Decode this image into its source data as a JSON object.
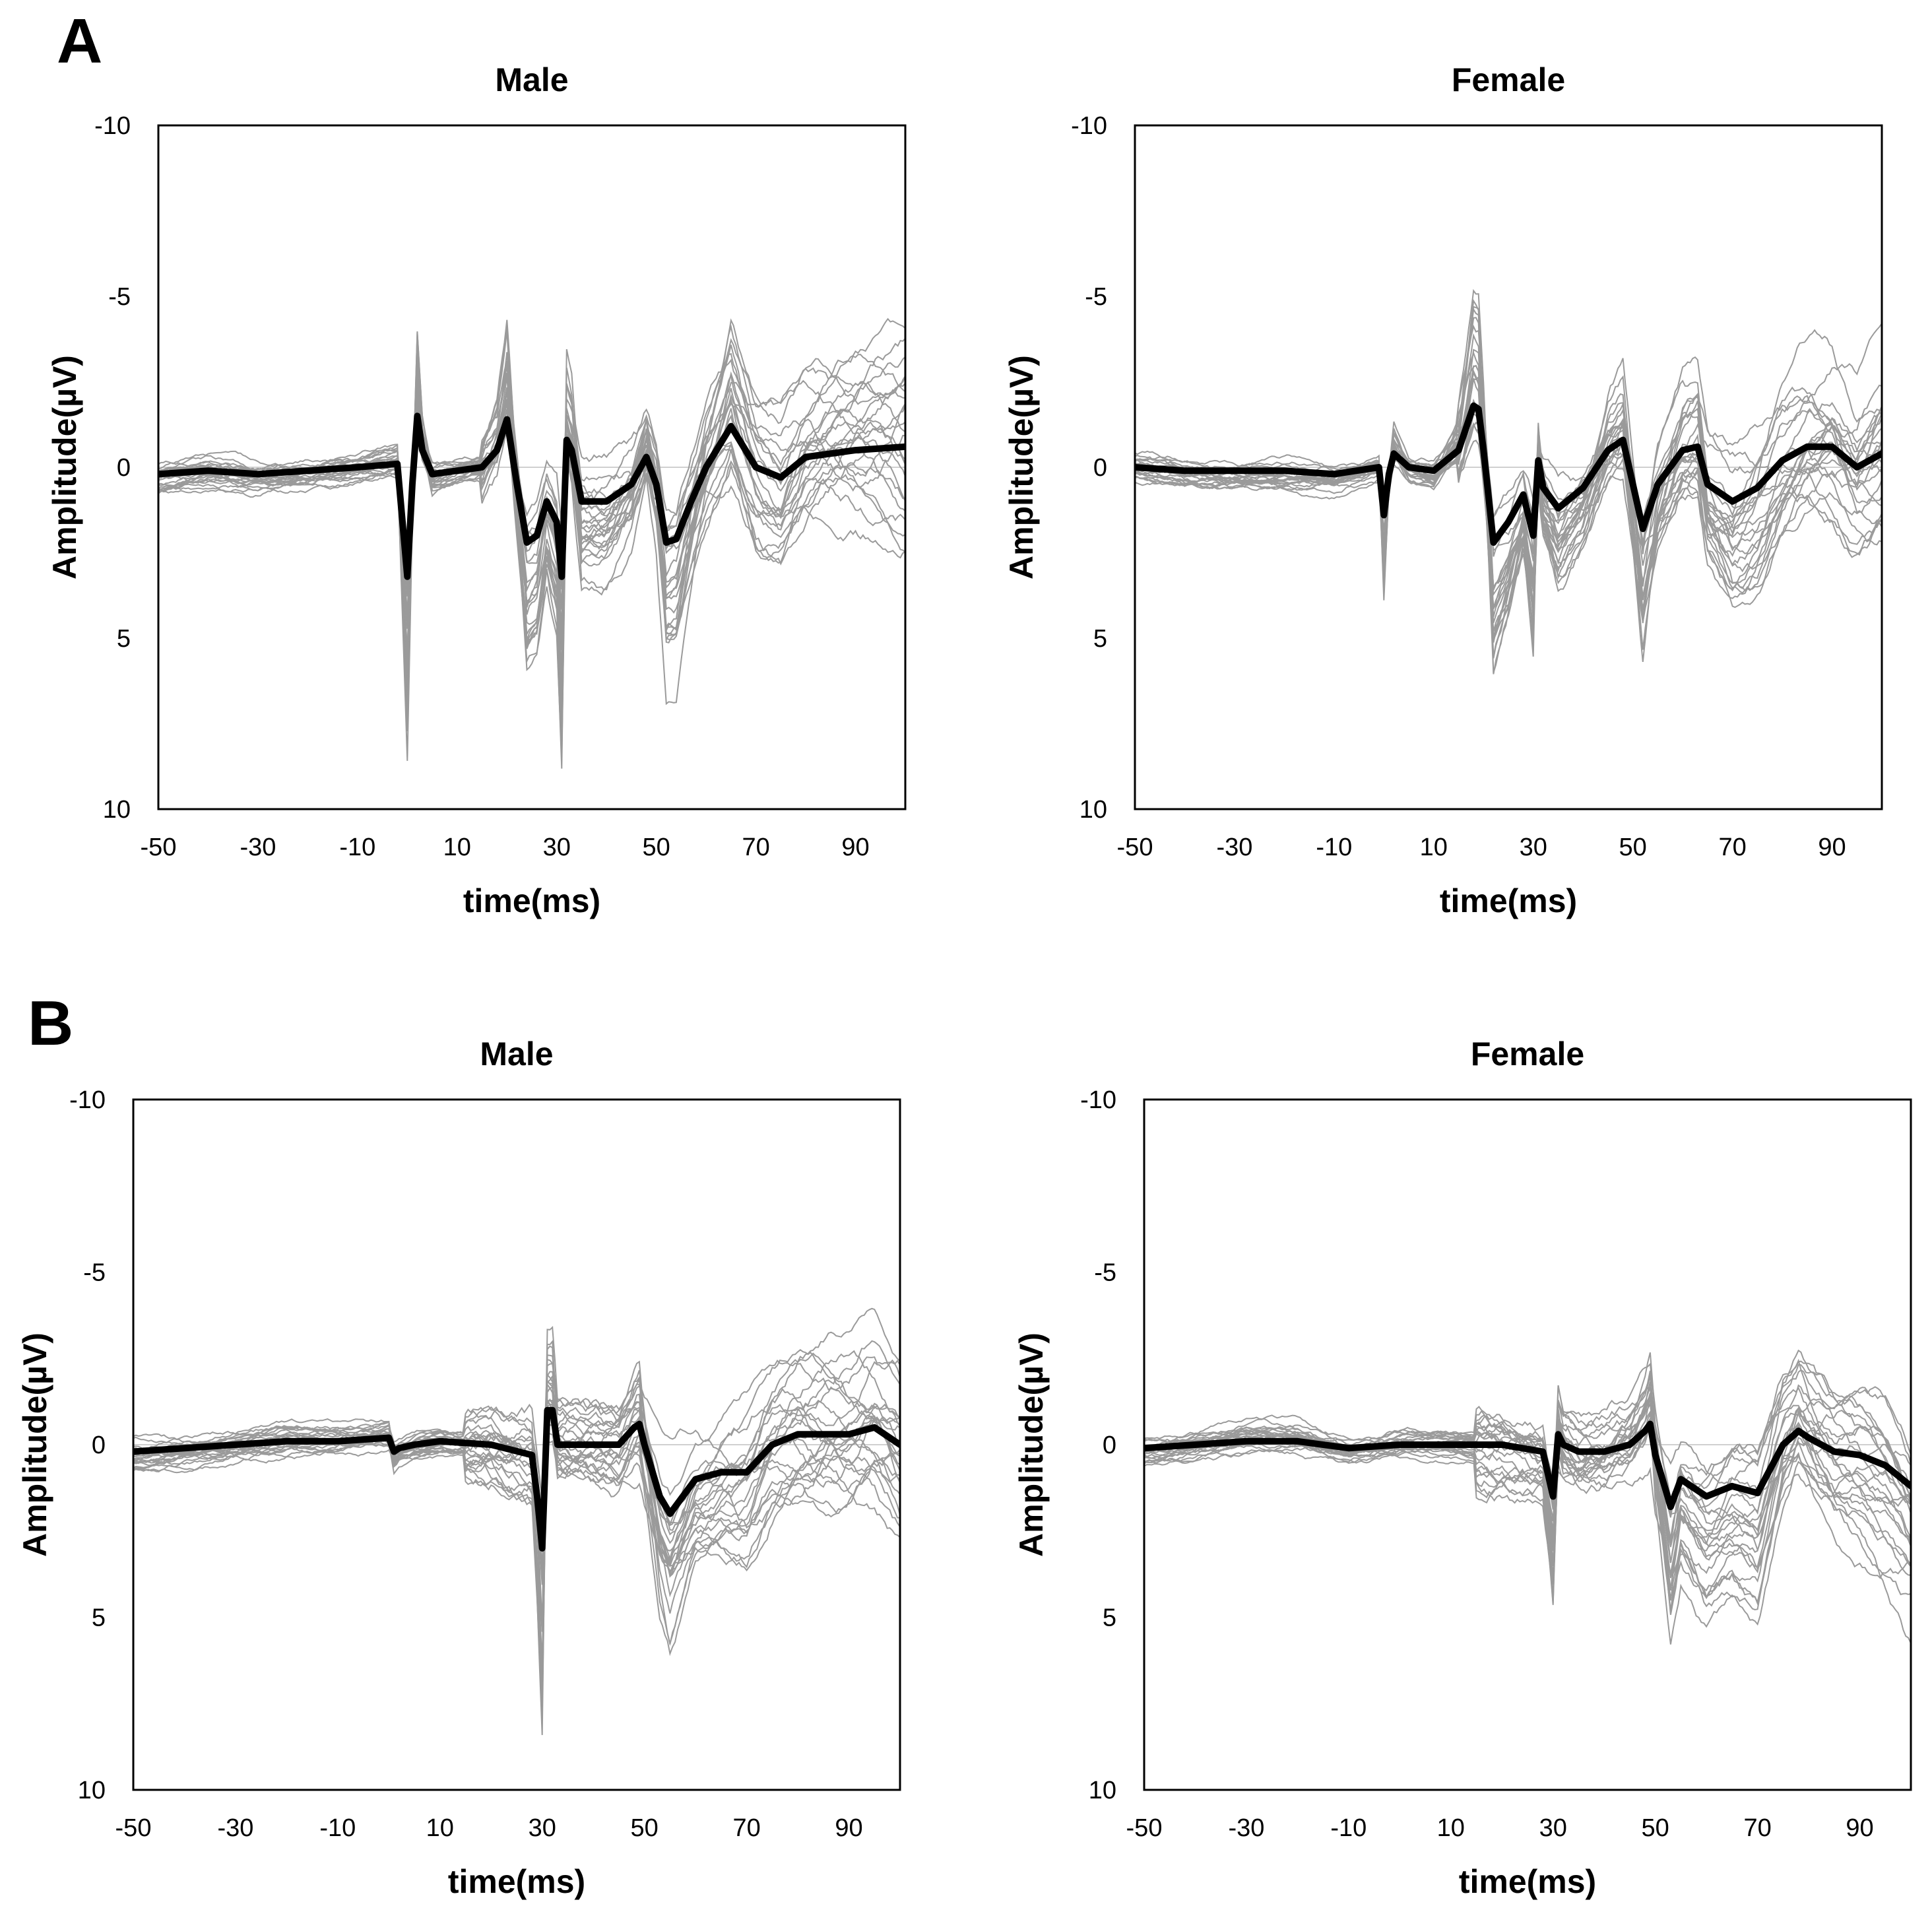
{
  "figure": {
    "panel_letters": [
      "A",
      "B"
    ]
  },
  "chart_data": [
    {
      "panel": "A",
      "type": "line",
      "title": "Male",
      "xlabel": "time(ms)",
      "ylabel": "Amplitude(µV)",
      "xlim": [
        -50,
        100
      ],
      "ylim": [
        -10,
        10
      ],
      "y_inverted": true,
      "xticks": [
        -50,
        -30,
        -10,
        10,
        30,
        50,
        70,
        90
      ],
      "yticks": [
        -10,
        -5,
        0,
        5,
        10
      ],
      "series": [
        {
          "name": "grand average",
          "color": "#000000",
          "x": [
            -50,
            -40,
            -30,
            -20,
            -10,
            -2,
            0,
            1,
            2,
            3,
            5,
            10,
            15,
            18,
            20,
            22,
            24,
            26,
            28,
            30,
            31,
            32,
            33,
            35,
            40,
            45,
            48,
            50,
            52,
            54,
            57,
            60,
            65,
            70,
            75,
            80,
            90,
            100
          ],
          "y": [
            0.2,
            0.1,
            0.2,
            0.1,
            0,
            -0.1,
            3.2,
            0.5,
            -1.5,
            -0.5,
            0.2,
            0.1,
            0,
            -0.5,
            -1.4,
            0.5,
            2.2,
            2.0,
            1.0,
            1.6,
            3.2,
            -0.8,
            -0.5,
            1.0,
            1.0,
            0.5,
            -0.3,
            0.5,
            2.2,
            2.1,
            1.0,
            0,
            -1.2,
            0,
            0.3,
            -0.3,
            -0.5,
            -0.6
          ]
        }
      ],
      "individual_traces": {
        "count": 24,
        "color": "#9a9a9a"
      }
    },
    {
      "panel": "A",
      "type": "line",
      "title": "Female",
      "xlabel": "time(ms)",
      "ylabel": "Amplitude(µV)",
      "xlim": [
        -50,
        100
      ],
      "ylim": [
        -10,
        10
      ],
      "y_inverted": true,
      "xticks": [
        -50,
        -30,
        -10,
        10,
        30,
        50,
        70,
        90
      ],
      "yticks": [
        -10,
        -5,
        0,
        5,
        10
      ],
      "series": [
        {
          "name": "grand average",
          "color": "#000000",
          "x": [
            -50,
            -40,
            -30,
            -20,
            -10,
            -1,
            0,
            1,
            2,
            5,
            10,
            15,
            18,
            19,
            20,
            22,
            25,
            28,
            30,
            31,
            32,
            35,
            40,
            45,
            48,
            50,
            52,
            55,
            60,
            63,
            65,
            70,
            75,
            80,
            85,
            90,
            95,
            100
          ],
          "y": [
            0,
            0.1,
            0.1,
            0.1,
            0.2,
            0,
            1.4,
            0.2,
            -0.4,
            0,
            0.1,
            -0.5,
            -1.8,
            -1.7,
            -0.5,
            2.2,
            1.6,
            0.8,
            2.0,
            -0.2,
            0.6,
            1.2,
            0.6,
            -0.5,
            -0.8,
            0.5,
            1.8,
            0.5,
            -0.5,
            -0.6,
            0.5,
            1.0,
            0.6,
            -0.2,
            -0.6,
            -0.6,
            0,
            -0.4
          ]
        }
      ],
      "individual_traces": {
        "count": 24,
        "color": "#9a9a9a"
      }
    },
    {
      "panel": "B",
      "type": "line",
      "title": "Male",
      "xlabel": "time(ms)",
      "ylabel": "Amplitude(µV)",
      "xlim": [
        -50,
        100
      ],
      "ylim": [
        -10,
        10
      ],
      "y_inverted": true,
      "xticks": [
        -50,
        -30,
        -10,
        10,
        30,
        50,
        70,
        90
      ],
      "yticks": [
        -10,
        -5,
        0,
        5,
        10
      ],
      "series": [
        {
          "name": "grand average",
          "color": "#000000",
          "x": [
            -50,
            -40,
            -30,
            -20,
            -10,
            0,
            1,
            2,
            5,
            10,
            20,
            28,
            29,
            30,
            31,
            32,
            33,
            35,
            40,
            45,
            48,
            49,
            50,
            53,
            55,
            60,
            65,
            70,
            75,
            80,
            90,
            95,
            100
          ],
          "y": [
            0.2,
            0.1,
            0,
            -0.1,
            -0.1,
            -0.2,
            0.2,
            0.1,
            0,
            -0.1,
            0,
            0.3,
            1.5,
            3.0,
            -1.0,
            -1.0,
            0,
            0,
            0,
            0,
            -0.5,
            -0.6,
            0,
            1.5,
            2.0,
            1.0,
            0.8,
            0.8,
            0,
            -0.3,
            -0.3,
            -0.5,
            0
          ]
        }
      ],
      "individual_traces": {
        "count": 24,
        "color": "#9a9a9a"
      }
    },
    {
      "panel": "B",
      "type": "line",
      "title": "Female",
      "xlabel": "time(ms)",
      "ylabel": "Amplitude(µV)",
      "xlim": [
        -50,
        100
      ],
      "ylim": [
        -10,
        10
      ],
      "y_inverted": true,
      "xticks": [
        -50,
        -30,
        -10,
        10,
        30,
        50,
        70,
        90
      ],
      "yticks": [
        -10,
        -5,
        0,
        5,
        10
      ],
      "series": [
        {
          "name": "grand average",
          "color": "#000000",
          "x": [
            -50,
            -40,
            -30,
            -20,
            -10,
            0,
            10,
            20,
            28,
            30,
            31,
            32,
            35,
            40,
            45,
            48,
            49,
            50,
            53,
            55,
            60,
            65,
            70,
            75,
            78,
            80,
            85,
            90,
            95,
            100
          ],
          "y": [
            0.1,
            0,
            -0.1,
            -0.1,
            0.1,
            0,
            0,
            0,
            0.2,
            1.5,
            -0.3,
            0,
            0.2,
            0.2,
            0,
            -0.4,
            -0.6,
            0.3,
            1.8,
            1.0,
            1.5,
            1.2,
            1.4,
            0,
            -0.4,
            -0.2,
            0.2,
            0.3,
            0.6,
            1.2
          ]
        }
      ],
      "individual_traces": {
        "count": 24,
        "color": "#9a9a9a"
      }
    }
  ]
}
